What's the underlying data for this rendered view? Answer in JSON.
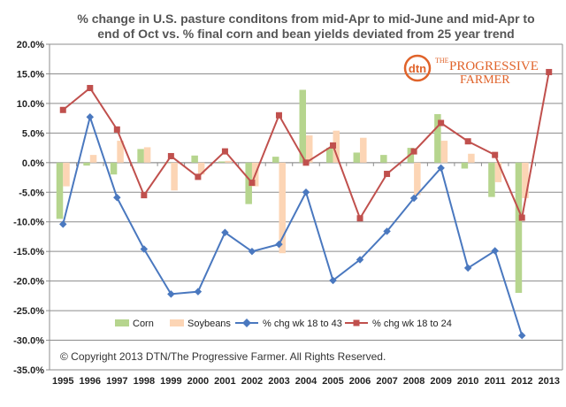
{
  "chart_data": {
    "type": "bar",
    "title_line1": "%  change in U.S. pasture conditons from mid-Apr to mid-June and mid-Apr to",
    "title_line2": "end of Oct vs. % final corn and bean yields deviated from 25 year trend",
    "categories": [
      "1995",
      "1996",
      "1997",
      "1998",
      "1999",
      "2000",
      "2001",
      "2002",
      "2003",
      "2004",
      "2005",
      "2006",
      "2007",
      "2008",
      "2009",
      "2010",
      "2011",
      "2012",
      "2013"
    ],
    "ylim": [
      -35,
      20
    ],
    "yticks": [
      -35,
      -30,
      -25,
      -20,
      -15,
      -10,
      -5,
      0,
      5,
      10,
      15,
      20
    ],
    "ytick_labels": [
      "-35.0%",
      "-30.0%",
      "-25.0%",
      "-20.0%",
      "-15.0%",
      "-10.0%",
      "-5.0%",
      "0.0%",
      "5.0%",
      "10.0%",
      "15.0%",
      "20.0%"
    ],
    "grid": true,
    "legend_position": "bottom-inside",
    "series": [
      {
        "name": "Corn",
        "type": "bar",
        "color": "#b6d58e",
        "values": [
          -9.5,
          -0.5,
          -2,
          2.3,
          0,
          1.2,
          0.2,
          -7,
          1,
          12.3,
          2.5,
          1.7,
          1.3,
          2.5,
          8.2,
          -1,
          -5.8,
          -22,
          null
        ]
      },
      {
        "name": "Soybeans",
        "type": "bar",
        "color": "#fcd5b5",
        "values": [
          -4,
          1.3,
          3.7,
          2.6,
          -4.7,
          -2,
          0.3,
          -4,
          -15.3,
          4.6,
          5.4,
          4.2,
          0,
          -5.5,
          3.7,
          1.5,
          -3.3,
          -6,
          null
        ]
      },
      {
        "name": "% chg wk 18 to 43",
        "type": "line",
        "color": "#4a78bf",
        "marker": "diamond",
        "values": [
          -10.4,
          7.7,
          -5.9,
          -14.6,
          -22.2,
          -21.8,
          -11.8,
          -15,
          -13.8,
          -5,
          -19.9,
          -16.4,
          -11.6,
          -6,
          -0.9,
          -17.8,
          -14.9,
          -29.2,
          null
        ]
      },
      {
        "name": "% chg wk 18 to 24",
        "type": "line",
        "color": "#c0504d",
        "marker": "square",
        "values": [
          8.9,
          12.6,
          5.6,
          -5.5,
          1.1,
          -2.4,
          1.9,
          -3.4,
          8,
          0,
          2.9,
          -9.4,
          -1.9,
          1.9,
          6.7,
          3.6,
          1.3,
          -9.3,
          15.3
        ]
      }
    ]
  },
  "copyright": "© Copyright 2013 DTN/The Progressive Farmer. All Rights Reserved.",
  "logo": {
    "dtn": "dtn",
    "the": "THE",
    "progressive": "PROGRESSIVE",
    "farmer": "FARMER"
  },
  "colors": {
    "grid": "#8c8c8c",
    "axis": "#8c8c8c"
  }
}
